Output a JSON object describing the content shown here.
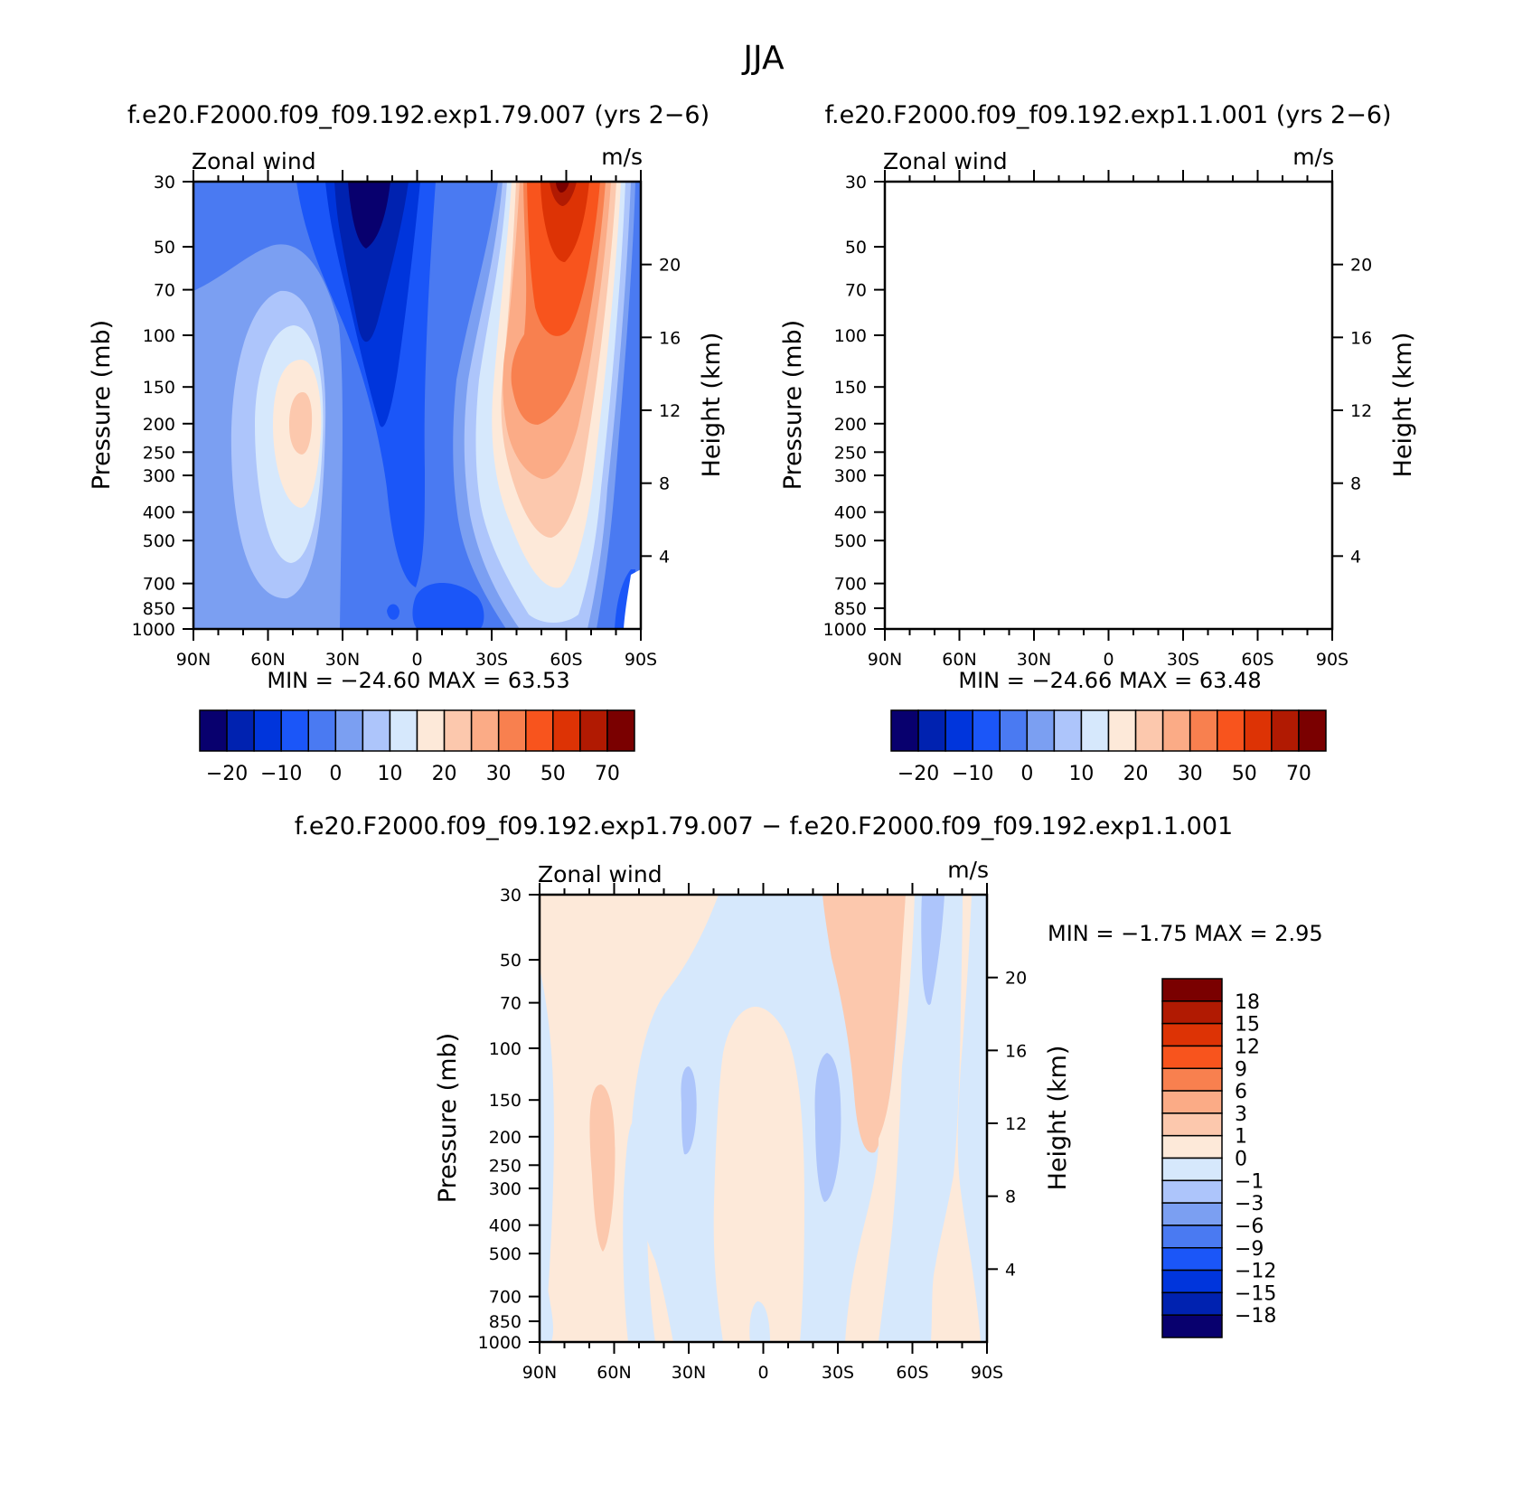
{
  "page_title": "JJA",
  "colors": {
    "main_levels": [
      "#08006e",
      "#0022b0",
      "#0035dc",
      "#1b56f8",
      "#4a7af2",
      "#7b9ff2",
      "#adc5fb",
      "#d6e8fc",
      "#fde9d9",
      "#fcc8ad",
      "#fbab86",
      "#f8804f",
      "#f8541d",
      "#dd3305",
      "#b11a02",
      "#7a0000"
    ],
    "diff_levels": [
      "#08006e",
      "#0022b0",
      "#0035dc",
      "#1b56f8",
      "#4a7af2",
      "#7b9ff2",
      "#adc5fb",
      "#d6e8fc",
      "#fde9d9",
      "#fcc8ad",
      "#fbab86",
      "#f8804f",
      "#f8541d",
      "#dd3305",
      "#b11a02",
      "#7a0000"
    ]
  },
  "chart_data": [
    {
      "type": "heatmap",
      "title": "f.e20.F2000.f09_f09.192.exp1.79.007 (yrs 2−6)",
      "left_label": "Zonal wind",
      "right_label": "m/s",
      "xlabel": "",
      "ylabel": "Pressure (mb)",
      "ylabel_right": "Height (km)",
      "x_ticks": [
        "90N",
        "60N",
        "30N",
        "0",
        "30S",
        "60S",
        "90S"
      ],
      "y_ticks": [
        "30",
        "50",
        "70",
        "100",
        "150",
        "200",
        "250",
        "300",
        "400",
        "500",
        "700",
        "850",
        "1000"
      ],
      "y_ticks_right": [
        "20",
        "16",
        "12",
        "8",
        "4"
      ],
      "min_max_label": "MIN =  −24.60   MAX =   63.53",
      "min": -24.6,
      "max": 63.53,
      "colorbar_labels": [
        "−20",
        "−10",
        "0",
        "10",
        "20",
        "30",
        "50",
        "70"
      ],
      "y_scale": "log-pressure"
    },
    {
      "type": "heatmap",
      "title": "f.e20.F2000.f09_f09.192.exp1.1.001 (yrs 2−6)",
      "left_label": "Zonal wind",
      "right_label": "m/s",
      "xlabel": "",
      "ylabel": "Pressure (mb)",
      "ylabel_right": "Height (km)",
      "x_ticks": [
        "90N",
        "60N",
        "30N",
        "0",
        "30S",
        "60S",
        "90S"
      ],
      "y_ticks": [
        "30",
        "50",
        "70",
        "100",
        "150",
        "200",
        "250",
        "300",
        "400",
        "500",
        "700",
        "850",
        "1000"
      ],
      "y_ticks_right": [
        "20",
        "16",
        "12",
        "8",
        "4"
      ],
      "min_max_label": "MIN =  −24.66   MAX =   63.48",
      "min": -24.66,
      "max": 63.48,
      "colorbar_labels": [
        "−20",
        "−10",
        "0",
        "10",
        "20",
        "30",
        "50",
        "70"
      ],
      "y_scale": "log-pressure"
    },
    {
      "type": "heatmap",
      "title": "f.e20.F2000.f09_f09.192.exp1.79.007 − f.e20.F2000.f09_f09.192.exp1.1.001",
      "left_label": "Zonal wind",
      "right_label": "m/s",
      "xlabel": "",
      "ylabel": "Pressure (mb)",
      "ylabel_right": "Height (km)",
      "x_ticks": [
        "90N",
        "60N",
        "30N",
        "0",
        "30S",
        "60S",
        "90S"
      ],
      "y_ticks": [
        "30",
        "50",
        "70",
        "100",
        "150",
        "200",
        "250",
        "300",
        "400",
        "500",
        "700",
        "850",
        "1000"
      ],
      "y_ticks_right": [
        "20",
        "16",
        "12",
        "8",
        "4"
      ],
      "min_max_label": "MIN =   −1.75   MAX =    2.95",
      "min": -1.75,
      "max": 2.95,
      "colorbar_labels": [
        "18",
        "15",
        "12",
        "9",
        "6",
        "3",
        "1",
        "0",
        "−1",
        "−3",
        "−6",
        "−9",
        "−12",
        "−15",
        "−18"
      ],
      "y_scale": "log-pressure"
    }
  ]
}
